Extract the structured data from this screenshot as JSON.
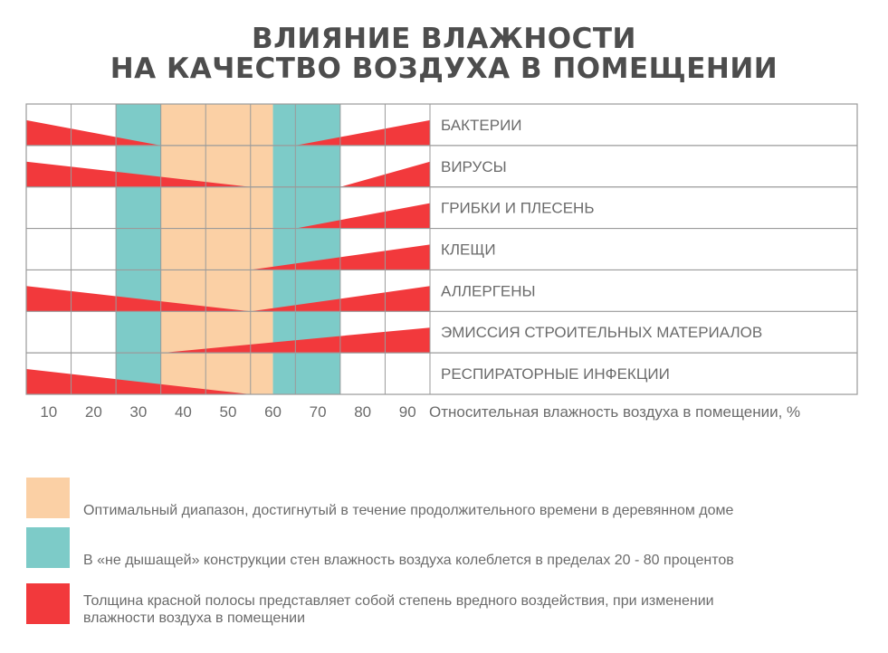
{
  "title_line1": "ВЛИЯНИЕ ВЛАЖНОСТИ",
  "title_line2": "НА КАЧЕСТВО ВОЗДУХА В ПОМЕЩЕНИИ",
  "colors": {
    "optimal": "#fbd0a5",
    "wall": "#7dcbc8",
    "harm": "#f2393c",
    "grid": "#9a9a9a",
    "text": "#6b6b6b"
  },
  "chart_data": {
    "type": "area",
    "title": "ВЛИЯНИЕ ВЛАЖНОСТИ НА КАЧЕСТВО ВОЗДУХА В ПОМЕЩЕНИИ",
    "xlabel": "Относительная влажность воздуха в помещении, %",
    "xlim": [
      5,
      95
    ],
    "xticks": [
      10,
      20,
      30,
      40,
      50,
      60,
      70,
      80,
      90
    ],
    "bands": [
      {
        "type": "wall",
        "x": [
          25,
          35
        ]
      },
      {
        "type": "optimal",
        "x": [
          35,
          60
        ]
      },
      {
        "type": "wall",
        "x": [
          60,
          75
        ]
      }
    ],
    "series": [
      {
        "name": "БАКТЕРИИ",
        "x": [
          5,
          35,
          65,
          95
        ],
        "values": [
          1,
          0,
          0,
          1
        ]
      },
      {
        "name": "ВИРУСЫ",
        "x": [
          5,
          55,
          75,
          95
        ],
        "values": [
          1,
          0,
          0,
          1
        ]
      },
      {
        "name": "ГРИБКИ И ПЛЕСЕНЬ",
        "x": [
          65,
          95
        ],
        "values": [
          0,
          1
        ]
      },
      {
        "name": "КЛЕЩИ",
        "x": [
          55,
          95
        ],
        "values": [
          0,
          1
        ]
      },
      {
        "name": "АЛЛЕРГЕНЫ",
        "x": [
          5,
          55,
          95
        ],
        "values": [
          1,
          0,
          1
        ]
      },
      {
        "name": "ЭМИССИЯ СТРОИТЕЛЬНЫХ МАТЕРИАЛОВ",
        "x": [
          35,
          95
        ],
        "values": [
          0,
          1
        ]
      },
      {
        "name": "РЕСПИРАТОРНЫЕ ИНФЕКЦИИ",
        "x": [
          5,
          55
        ],
        "values": [
          1,
          0
        ]
      }
    ]
  },
  "legend": [
    {
      "key": "optimal",
      "label": "Оптимальный диапазон, достигнутый в течение продолжительного времени в деревянном доме"
    },
    {
      "key": "wall",
      "label": "В «не дышащей» конструкции стен влажность воздуха колеблется в пределах 20 - 80 процентов"
    },
    {
      "key": "harm",
      "label_line1": "Толщина красной полосы представляет собой степень вредного воздействия, при изменении",
      "label_line2": "влажности воздуха в помещении"
    }
  ]
}
